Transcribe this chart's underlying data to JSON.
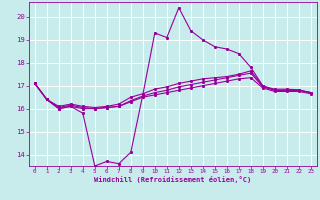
{
  "xlabel": "Windchill (Refroidissement éolien,°C)",
  "background_color": "#c8ecec",
  "line_color": "#990099",
  "grid_color": "#ffffff",
  "x_hours": [
    0,
    1,
    2,
    3,
    4,
    5,
    6,
    7,
    8,
    9,
    10,
    11,
    12,
    13,
    14,
    15,
    16,
    17,
    18,
    19,
    20,
    21,
    22,
    23
  ],
  "series1": [
    17.1,
    16.4,
    16.0,
    16.1,
    15.8,
    13.5,
    13.7,
    13.6,
    14.1,
    16.6,
    19.3,
    19.1,
    20.4,
    19.4,
    19.0,
    18.7,
    18.6,
    18.4,
    17.8,
    17.0,
    16.8,
    16.8,
    16.8,
    16.7
  ],
  "series2": [
    17.1,
    16.4,
    16.0,
    16.1,
    16.0,
    16.0,
    16.05,
    16.1,
    16.3,
    16.5,
    16.6,
    16.7,
    16.8,
    16.9,
    17.0,
    17.1,
    17.2,
    17.3,
    17.35,
    16.9,
    16.75,
    16.75,
    16.75,
    16.65
  ],
  "series3": [
    17.1,
    16.4,
    16.05,
    16.15,
    16.05,
    16.0,
    16.05,
    16.1,
    16.35,
    16.55,
    16.7,
    16.8,
    16.95,
    17.05,
    17.15,
    17.25,
    17.35,
    17.45,
    17.55,
    16.95,
    16.8,
    16.8,
    16.8,
    16.7
  ],
  "series4": [
    17.1,
    16.4,
    16.1,
    16.2,
    16.1,
    16.05,
    16.1,
    16.2,
    16.5,
    16.65,
    16.85,
    16.95,
    17.1,
    17.2,
    17.3,
    17.35,
    17.4,
    17.5,
    17.65,
    16.98,
    16.85,
    16.85,
    16.82,
    16.7
  ],
  "ylim": [
    13.5,
    20.65
  ],
  "yticks": [
    14,
    15,
    16,
    17,
    18,
    19,
    20
  ],
  "xlim": [
    -0.5,
    23.5
  ],
  "marker": "o",
  "markersize": 1.8,
  "linewidth": 0.8
}
